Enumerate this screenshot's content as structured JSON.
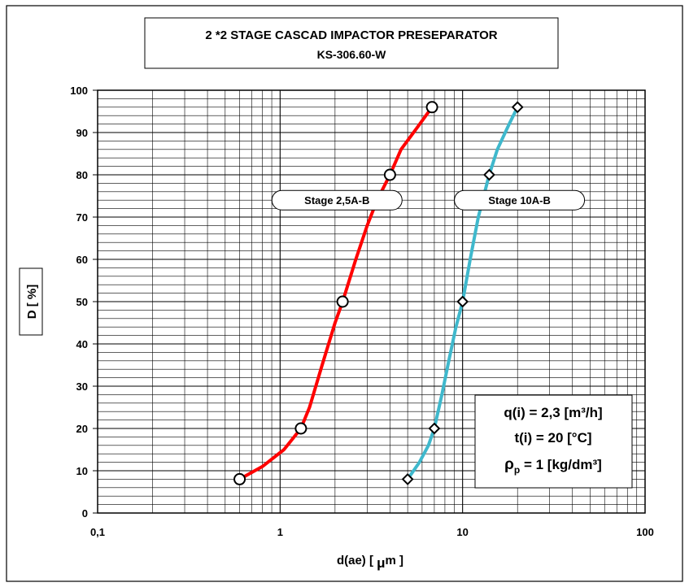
{
  "chart_data": {
    "type": "line",
    "title_line1": "2 *2 STAGE  CASCAD IMPACTOR PRESEPARATOR",
    "title_line2": "KS-306.60-W",
    "xlabel_prefix": "d(ae) [ ",
    "xlabel_mu": "μ",
    "xlabel_suffix": "m ]",
    "ylabel": "D [ %]",
    "x_scale": "log",
    "xlim": [
      0.1,
      100
    ],
    "ylim": [
      0,
      100
    ],
    "x_ticks": [
      {
        "value": 0.1,
        "label": "0,1"
      },
      {
        "value": 1,
        "label": "1"
      },
      {
        "value": 10,
        "label": "10"
      },
      {
        "value": 100,
        "label": "100"
      }
    ],
    "y_ticks": [
      0,
      10,
      20,
      30,
      40,
      50,
      60,
      70,
      80,
      90,
      100
    ],
    "grid": true,
    "series": [
      {
        "name": "Stage 2,5A-B",
        "color": "#ff0000",
        "marker": "circle",
        "points": [
          [
            0.6,
            8
          ],
          [
            1.3,
            20
          ],
          [
            2.2,
            50
          ],
          [
            4.0,
            80
          ],
          [
            6.8,
            96
          ]
        ],
        "curve": [
          [
            0.6,
            8
          ],
          [
            0.8,
            11
          ],
          [
            1.05,
            15
          ],
          [
            1.3,
            20
          ],
          [
            1.45,
            25
          ],
          [
            1.7,
            35
          ],
          [
            2.0,
            45
          ],
          [
            2.2,
            50
          ],
          [
            2.6,
            60
          ],
          [
            3.0,
            68
          ],
          [
            3.4,
            74
          ],
          [
            4.0,
            80
          ],
          [
            4.6,
            86
          ],
          [
            5.6,
            91
          ],
          [
            6.8,
            96
          ]
        ]
      },
      {
        "name": "Stage 10A-B",
        "color": "#3fb8cc",
        "marker": "diamond",
        "points": [
          [
            5.0,
            8
          ],
          [
            7.0,
            20
          ],
          [
            10.0,
            50
          ],
          [
            14.0,
            80
          ],
          [
            20.0,
            96
          ]
        ],
        "curve": [
          [
            5.0,
            8
          ],
          [
            5.8,
            12
          ],
          [
            6.5,
            16
          ],
          [
            7.0,
            20
          ],
          [
            7.7,
            28
          ],
          [
            8.4,
            36
          ],
          [
            9.2,
            44
          ],
          [
            10.0,
            50
          ],
          [
            11.0,
            60
          ],
          [
            12.2,
            70
          ],
          [
            14.0,
            80
          ],
          [
            15.5,
            86
          ],
          [
            18.0,
            92
          ],
          [
            20.0,
            96
          ]
        ]
      }
    ],
    "legend_labels": [
      {
        "text": "Stage 2,5A-B",
        "anchor_x": 2.05,
        "anchor_y": 74
      },
      {
        "text": "Stage 10A-B",
        "anchor_x": 20.5,
        "anchor_y": 74
      }
    ],
    "conditions": {
      "line1": "q(i) = 2,3 [m³/h]",
      "line2": "t(i) = 20 [°C]",
      "line3_rho": "ρ",
      "line3_sub": "p",
      "line3_rest": " = 1 [kg/dm³]"
    }
  }
}
